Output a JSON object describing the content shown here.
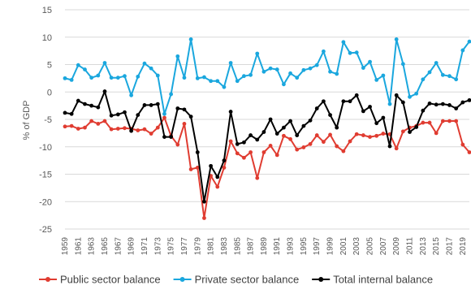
{
  "chart_data": {
    "type": "line",
    "title": "",
    "xlabel": "",
    "ylabel": "% of GDP",
    "ylim": [
      -25,
      15
    ],
    "yticks": [
      15,
      10,
      5,
      0,
      -5,
      -10,
      -15,
      -20,
      -25
    ],
    "x": [
      1959,
      1960,
      1961,
      1962,
      1963,
      1964,
      1965,
      1966,
      1967,
      1968,
      1969,
      1970,
      1971,
      1972,
      1973,
      1974,
      1975,
      1976,
      1977,
      1978,
      1979,
      1980,
      1981,
      1982,
      1983,
      1984,
      1985,
      1986,
      1987,
      1988,
      1989,
      1990,
      1991,
      1992,
      1993,
      1994,
      1995,
      1996,
      1997,
      1998,
      1999,
      2000,
      2001,
      2002,
      2003,
      2004,
      2005,
      2006,
      2007,
      2008,
      2009,
      2010,
      2011,
      2012,
      2013,
      2014,
      2015,
      2016,
      2017,
      2018,
      2019,
      2020
    ],
    "xtick_labels": [
      "1959",
      "1961",
      "1963",
      "1965",
      "1967",
      "1969",
      "1971",
      "1973",
      "1975",
      "1977",
      "1979",
      "1981",
      "1983",
      "1985",
      "1987",
      "1989",
      "1991",
      "1993",
      "1995",
      "1997",
      "1999",
      "2001",
      "2003",
      "2005",
      "2007",
      "2009",
      "2011",
      "2013",
      "2015",
      "2017",
      "2019"
    ],
    "grid": true,
    "legend_position": "bottom",
    "series": [
      {
        "name": "Public sector balance",
        "color": "#e03c31",
        "values": [
          -6.3,
          -6.2,
          -6.7,
          -6.5,
          -5.3,
          -5.8,
          -5.3,
          -6.8,
          -6.7,
          -6.6,
          -6.7,
          -7.0,
          -6.8,
          -7.6,
          -6.5,
          -4.7,
          -8.0,
          -9.6,
          -5.8,
          -14.1,
          -13.8,
          -23.0,
          -15.3,
          -17.3,
          -13.8,
          -9.0,
          -11.2,
          -12.0,
          -11.0,
          -15.7,
          -11.0,
          -9.8,
          -11.5,
          -8.0,
          -8.6,
          -10.5,
          -10.1,
          -9.5,
          -7.9,
          -9.1,
          -7.8,
          -9.9,
          -10.8,
          -9.0,
          -7.7,
          -7.9,
          -8.2,
          -8.0,
          -7.6,
          -7.7,
          -10.3,
          -7.2,
          -6.5,
          -6.2,
          -5.6,
          -5.6,
          -7.5,
          -5.3,
          -5.3,
          -5.3,
          -9.6,
          -11.0
        ]
      },
      {
        "name": "Private sector balance",
        "color": "#1aa7de",
        "values": [
          2.5,
          2.2,
          4.9,
          4.1,
          2.6,
          3.0,
          5.3,
          2.6,
          2.6,
          2.9,
          -0.6,
          2.8,
          5.2,
          4.3,
          3.0,
          -4.0,
          -0.4,
          6.5,
          2.6,
          9.6,
          2.5,
          2.7,
          2.0,
          2.0,
          0.9,
          5.3,
          2.0,
          2.9,
          3.1,
          7.0,
          3.7,
          4.3,
          4.1,
          1.4,
          3.4,
          2.6,
          4.0,
          4.3,
          4.9,
          7.4,
          3.7,
          3.3,
          9.1,
          7.1,
          7.2,
          4.4,
          5.5,
          2.2,
          3.0,
          -2.2,
          9.6,
          5.1,
          -0.9,
          -0.3,
          2.3,
          3.6,
          5.3,
          3.1,
          2.9,
          2.3,
          7.6,
          9.2
        ]
      },
      {
        "name": "Total internal balance",
        "color": "#000000",
        "values": [
          -3.8,
          -4.0,
          -1.6,
          -2.2,
          -2.5,
          -2.8,
          0.1,
          -4.3,
          -4.1,
          -3.7,
          -7.1,
          -4.2,
          -2.4,
          -2.4,
          -2.2,
          -8.2,
          -8.2,
          -3.0,
          -3.2,
          -4.5,
          -11.0,
          -20.0,
          -13.5,
          -15.5,
          -12.5,
          -3.6,
          -9.5,
          -9.2,
          -7.9,
          -8.7,
          -7.3,
          -5.0,
          -7.6,
          -6.5,
          -5.3,
          -7.9,
          -6.2,
          -5.2,
          -3.0,
          -1.7,
          -4.2,
          -6.5,
          -1.7,
          -1.7,
          -0.6,
          -3.5,
          -2.7,
          -5.7,
          -4.7,
          -9.9,
          -0.6,
          -1.9,
          -7.3,
          -6.4,
          -3.4,
          -2.1,
          -2.3,
          -2.2,
          -2.4,
          -3.0,
          -1.9,
          -1.5
        ]
      }
    ]
  }
}
